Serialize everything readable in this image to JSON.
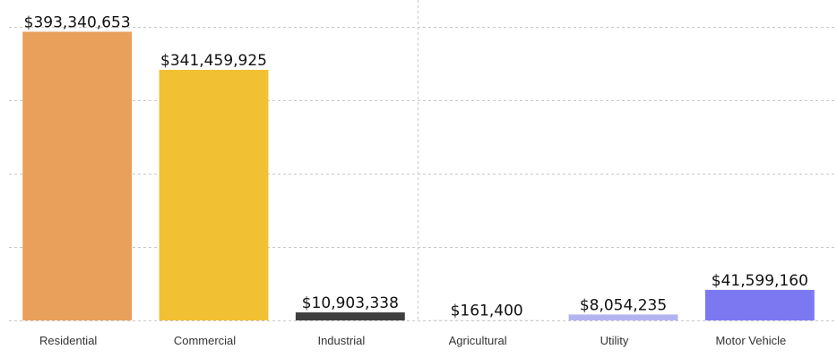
{
  "chart_data": {
    "type": "bar",
    "title": "",
    "xlabel": "",
    "ylabel": "",
    "ylim": [
      0,
      400000000
    ],
    "yticks": [
      0,
      100000000,
      200000000,
      300000000,
      400000000
    ],
    "grid": true,
    "categories": [
      "Residential",
      "Commercial",
      "Industrial",
      "Agricultural",
      "Utility",
      "Motor Vehicle"
    ],
    "values": [
      393340653,
      341459925,
      10903338,
      161400,
      8054235,
      41599160
    ],
    "data_labels": [
      "$393,340,653",
      "$341,459,925",
      "$10,903,338",
      "$161,400",
      "$8,054,235",
      "$41,599,160"
    ],
    "colors": [
      "#E8A05A",
      "#F2C033",
      "#3F3F3F",
      "#E8E8E8",
      "#B3B3F2",
      "#7B78F2"
    ]
  }
}
